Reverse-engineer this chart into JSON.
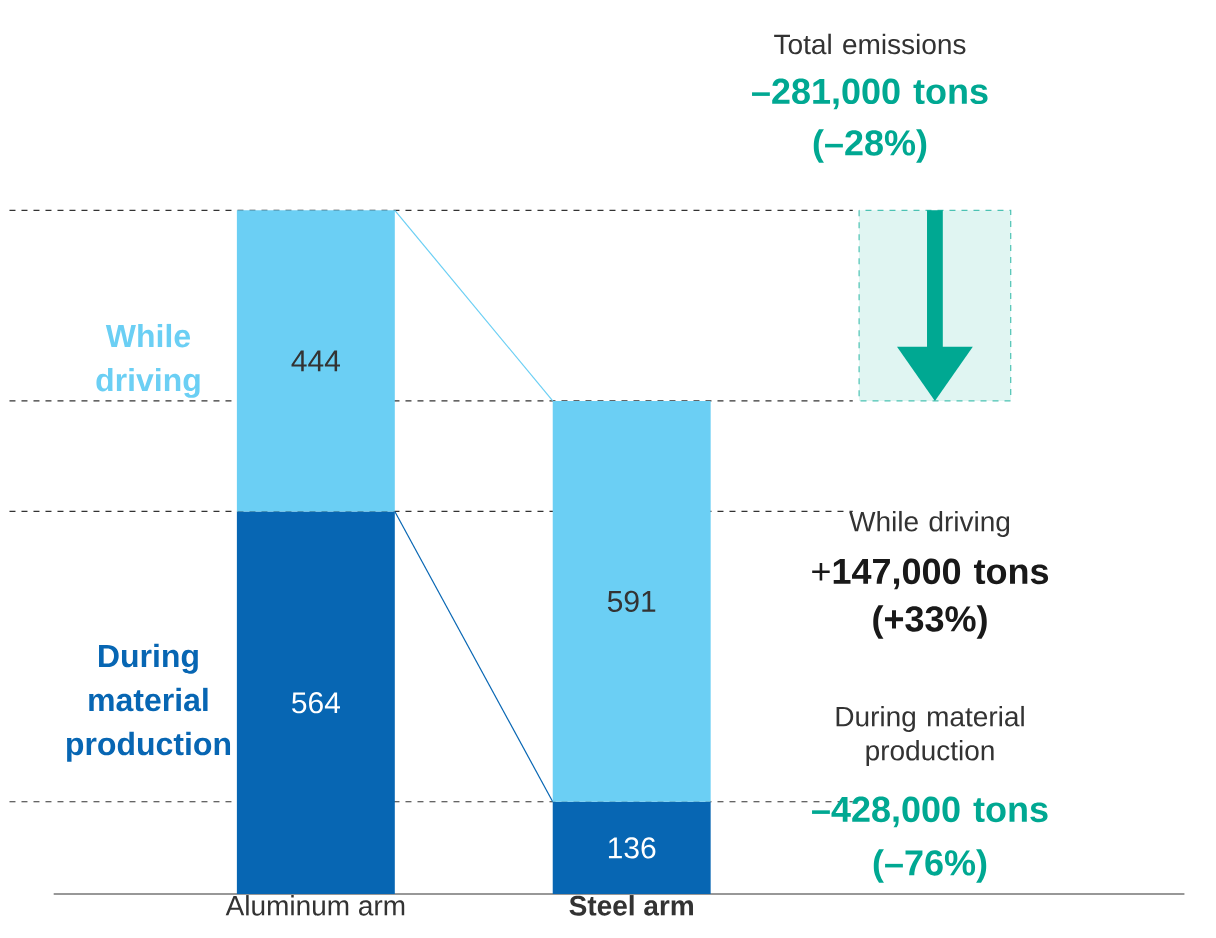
{
  "chart_data": {
    "type": "bar",
    "stacked": true,
    "data_labels": true,
    "categories": [
      "Aluminum arm",
      "Steel arm"
    ],
    "series": [
      {
        "name": "During material production",
        "color": "#0766b3",
        "values": [
          564,
          136
        ]
      },
      {
        "name": "While driving",
        "color": "#6bcff4",
        "values": [
          444,
          591
        ]
      }
    ],
    "ref_lines": [
      {
        "axis": "y",
        "value": 1008,
        "line_style": "dashed",
        "color": "#333333"
      },
      {
        "axis": "y",
        "value": 564,
        "line_style": "dashed",
        "color": "#333333"
      },
      {
        "axis": "y",
        "value": 727,
        "line_style": "dashed",
        "color": "#333333"
      },
      {
        "axis": "y",
        "value": 136,
        "line_style": "dashed",
        "color": "#333333"
      }
    ],
    "annotations": [
      "Total emissions",
      "–281,000 tons",
      "(–28%)",
      "While driving",
      "+**147,000 tons**",
      "(+33%)",
      "During material production",
      "–428,000 tons",
      "(–76%)"
    ]
  }
}
